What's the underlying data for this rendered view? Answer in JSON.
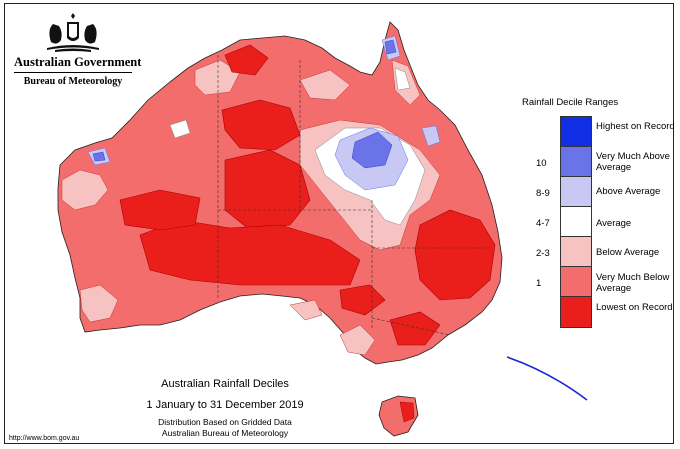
{
  "header": {
    "government": "Australian Government",
    "bureau": "Bureau of Meteorology"
  },
  "legend": {
    "title": "Rainfall Decile Ranges",
    "items": [
      {
        "label": "Highest on Record",
        "range": "",
        "color": "#1130e6"
      },
      {
        "label": "Very Much Above Average",
        "range": "10",
        "color": "#6b73e8"
      },
      {
        "label": "Above Average",
        "range": "8-9",
        "color": "#c8c8f4"
      },
      {
        "label": "Average",
        "range": "4-7",
        "color": "#ffffff"
      },
      {
        "label": "Below Average",
        "range": "2-3",
        "color": "#f6c3c2"
      },
      {
        "label": "Very Much Below Average",
        "range": "1",
        "color": "#f26d6b"
      },
      {
        "label": "Lowest on Record",
        "range": "",
        "color": "#ea1f1c"
      }
    ]
  },
  "map": {
    "title": "Australian Rainfall Deciles",
    "date_range": "1 January to 31 December 2019",
    "line1": "Distribution Based on Gridded Data",
    "line2": "Australian Bureau of Meteorology",
    "url": "http://www.bom.gov.au"
  }
}
